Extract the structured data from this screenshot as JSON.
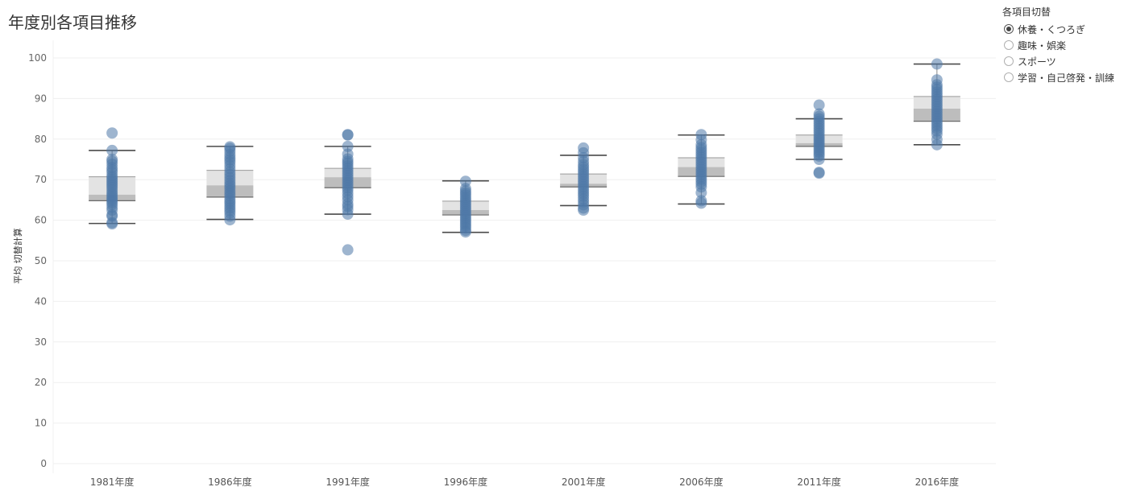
{
  "page": {
    "title": "年度別各項目推移"
  },
  "legend": {
    "title": "各項目切替",
    "items": [
      {
        "label": "休養・くつろぎ",
        "checked": true
      },
      {
        "label": "趣味・娯楽",
        "checked": false
      },
      {
        "label": "スポーツ",
        "checked": false
      },
      {
        "label": "学習・自己啓発・訓練",
        "checked": false
      }
    ]
  },
  "colors": {
    "point": "#4e79a7",
    "box_upper": "#e3e3e3",
    "box_lower": "#bdbdbd",
    "whisker": "#4a4a4a",
    "grid": "#efefef",
    "axis_text": "#666666"
  },
  "chart_data": {
    "type": "scatter",
    "subtype": "box-and-whisker with jittered points",
    "title": "年度別各項目推移",
    "xlabel": "",
    "ylabel": "平均 切替計算",
    "ylim": [
      0,
      100
    ],
    "yticks": [
      0,
      10,
      20,
      30,
      40,
      50,
      60,
      70,
      80,
      90,
      100
    ],
    "categories": [
      "1981年度",
      "1986年度",
      "1991年度",
      "1996年度",
      "2001年度",
      "2006年度",
      "2011年度",
      "2016年度"
    ],
    "boxes": [
      {
        "category": "1981年度",
        "whisker_low": 59.2,
        "q1": 64.8,
        "median": 66.3,
        "q3": 70.7,
        "whisker_high": 77.2
      },
      {
        "category": "1986年度",
        "whisker_low": 60.2,
        "q1": 65.7,
        "median": 68.6,
        "q3": 72.3,
        "whisker_high": 78.2
      },
      {
        "category": "1991年度",
        "whisker_low": 61.5,
        "q1": 68.0,
        "median": 70.6,
        "q3": 72.8,
        "whisker_high": 78.2
      },
      {
        "category": "1996年度",
        "whisker_low": 57.0,
        "q1": 61.3,
        "median": 62.5,
        "q3": 64.7,
        "whisker_high": 69.7
      },
      {
        "category": "2001年度",
        "whisker_low": 63.6,
        "q1": 68.2,
        "median": 69.0,
        "q3": 71.4,
        "whisker_high": 76.0
      },
      {
        "category": "2006年度",
        "whisker_low": 64.0,
        "q1": 70.8,
        "median": 73.1,
        "q3": 75.4,
        "whisker_high": 81.0
      },
      {
        "category": "2011年度",
        "whisker_low": 75.0,
        "q1": 78.2,
        "median": 79.0,
        "q3": 81.0,
        "whisker_high": 85.0
      },
      {
        "category": "2016年度",
        "whisker_low": 78.6,
        "q1": 84.4,
        "median": 87.5,
        "q3": 90.5,
        "whisker_high": 98.5
      }
    ],
    "points": [
      [
        81.5,
        77.2,
        75.0,
        74.5,
        73.8,
        73.0,
        72.4,
        71.8,
        71.0,
        70.5,
        70.0,
        69.5,
        69.0,
        68.5,
        68.0,
        67.4,
        66.8,
        66.3,
        65.8,
        65.3,
        64.9,
        64.4,
        63.9,
        63.2,
        62.5,
        61.3,
        61.0,
        59.4,
        59.1
      ],
      [
        78.1,
        77.7,
        77.0,
        76.2,
        75.5,
        74.9,
        74.3,
        73.5,
        72.7,
        71.9,
        71.2,
        70.5,
        69.8,
        69.1,
        68.5,
        67.9,
        67.2,
        66.6,
        66.0,
        65.3,
        64.7,
        64.2,
        63.6,
        63.0,
        62.4,
        61.8,
        61.0,
        60.1
      ],
      [
        81.1,
        81.0,
        78.2,
        76.3,
        75.1,
        74.5,
        74.0,
        73.4,
        72.8,
        72.2,
        71.6,
        71.0,
        70.4,
        69.8,
        69.2,
        68.6,
        68.0,
        67.4,
        66.6,
        65.8,
        65.0,
        64.0,
        63.4,
        62.6,
        61.5,
        52.7
      ],
      [
        69.6,
        67.8,
        67.2,
        66.7,
        66.2,
        65.6,
        65.1,
        64.6,
        64.1,
        63.6,
        63.1,
        62.6,
        62.1,
        61.6,
        61.1,
        60.6,
        60.1,
        59.6,
        59.1,
        58.6,
        58.1,
        57.5,
        57.1
      ],
      [
        77.8,
        76.6,
        75.4,
        74.5,
        73.7,
        73.1,
        72.5,
        71.9,
        71.3,
        70.7,
        70.1,
        69.5,
        68.9,
        68.3,
        67.7,
        67.1,
        66.5,
        65.9,
        65.2,
        64.5,
        63.8,
        63.0,
        62.5
      ],
      [
        81.1,
        79.8,
        78.6,
        77.9,
        77.3,
        76.7,
        76.1,
        75.5,
        74.9,
        74.3,
        73.7,
        73.1,
        72.5,
        71.9,
        71.3,
        70.7,
        70.1,
        69.5,
        68.9,
        68.2,
        66.8,
        64.8,
        64.2
      ],
      [
        88.4,
        86.2,
        85.6,
        85.0,
        84.4,
        83.8,
        83.2,
        82.6,
        82.0,
        81.4,
        80.8,
        80.3,
        79.8,
        79.3,
        78.8,
        78.3,
        77.8,
        77.3,
        76.8,
        76.3,
        75.8,
        75.0,
        71.8,
        71.6
      ],
      [
        98.5,
        94.6,
        93.4,
        92.8,
        92.2,
        91.6,
        91.0,
        90.4,
        89.8,
        89.2,
        88.6,
        88.0,
        87.4,
        86.8,
        86.2,
        85.6,
        85.0,
        84.4,
        83.8,
        83.2,
        82.6,
        82.0,
        81.2,
        79.9,
        78.6
      ]
    ]
  }
}
